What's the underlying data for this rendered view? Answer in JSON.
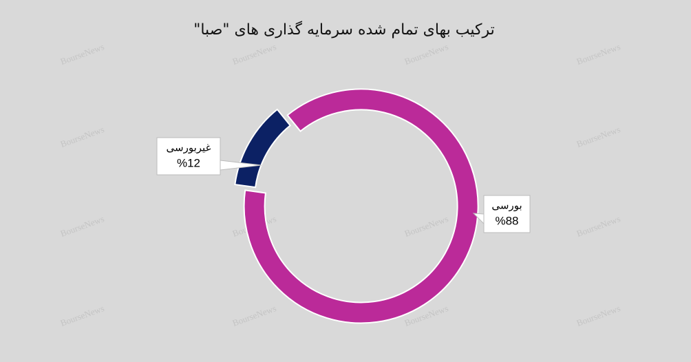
{
  "chart_data": {
    "type": "pie",
    "donut": true,
    "title": "ترکیب بهای تمام شده سرمایه گذاری های \"صبا\"",
    "categories": [
      "بورسی",
      "غیربورسی"
    ],
    "values": [
      88,
      12
    ],
    "value_labels": [
      "%88",
      "%12"
    ],
    "colors": [
      "#bb2a99",
      "#0c2164"
    ],
    "watermark": "BourseNews"
  }
}
